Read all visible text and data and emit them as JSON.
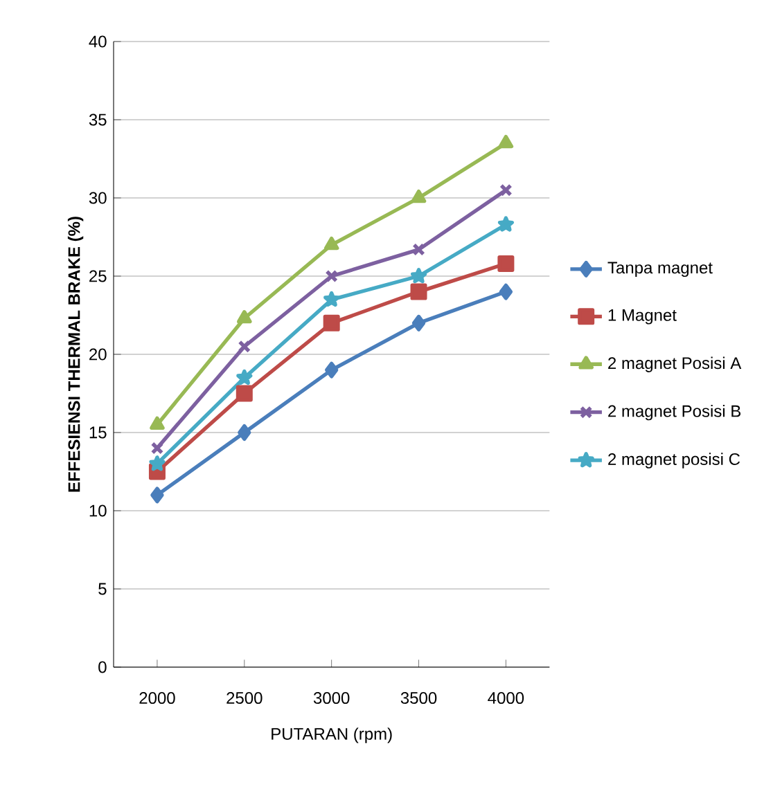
{
  "chart_data": {
    "type": "line",
    "xlabel": "PUTARAN (rpm)",
    "ylabel": "EFFESIENSI THERMAL BRAKE (%)",
    "categories": [
      "2000",
      "2500",
      "3000",
      "3500",
      "4000"
    ],
    "ylim": [
      0,
      40
    ],
    "yticks": [
      0,
      5,
      10,
      15,
      20,
      25,
      30,
      35,
      40
    ],
    "grid": "y",
    "legend": "right",
    "series": [
      {
        "name": "Tanpa magnet",
        "color": "#4a7ebb",
        "marker": "diamond",
        "values": [
          11,
          15,
          19,
          22,
          24
        ]
      },
      {
        "name": "1 Magnet",
        "color": "#be4b48",
        "marker": "square",
        "values": [
          12.5,
          17.5,
          22,
          24,
          25.8
        ]
      },
      {
        "name": "2 magnet Posisi A",
        "color": "#98b954",
        "marker": "triangle",
        "values": [
          15.5,
          22.3,
          27,
          30,
          33.5
        ]
      },
      {
        "name": "2 magnet Posisi B",
        "color": "#7d60a0",
        "marker": "cross",
        "values": [
          14,
          20.5,
          25,
          26.7,
          30.5
        ]
      },
      {
        "name": "2 magnet posisi C",
        "color": "#46aac5",
        "marker": "star",
        "values": [
          13,
          18.5,
          23.5,
          25,
          28.3
        ]
      }
    ]
  }
}
